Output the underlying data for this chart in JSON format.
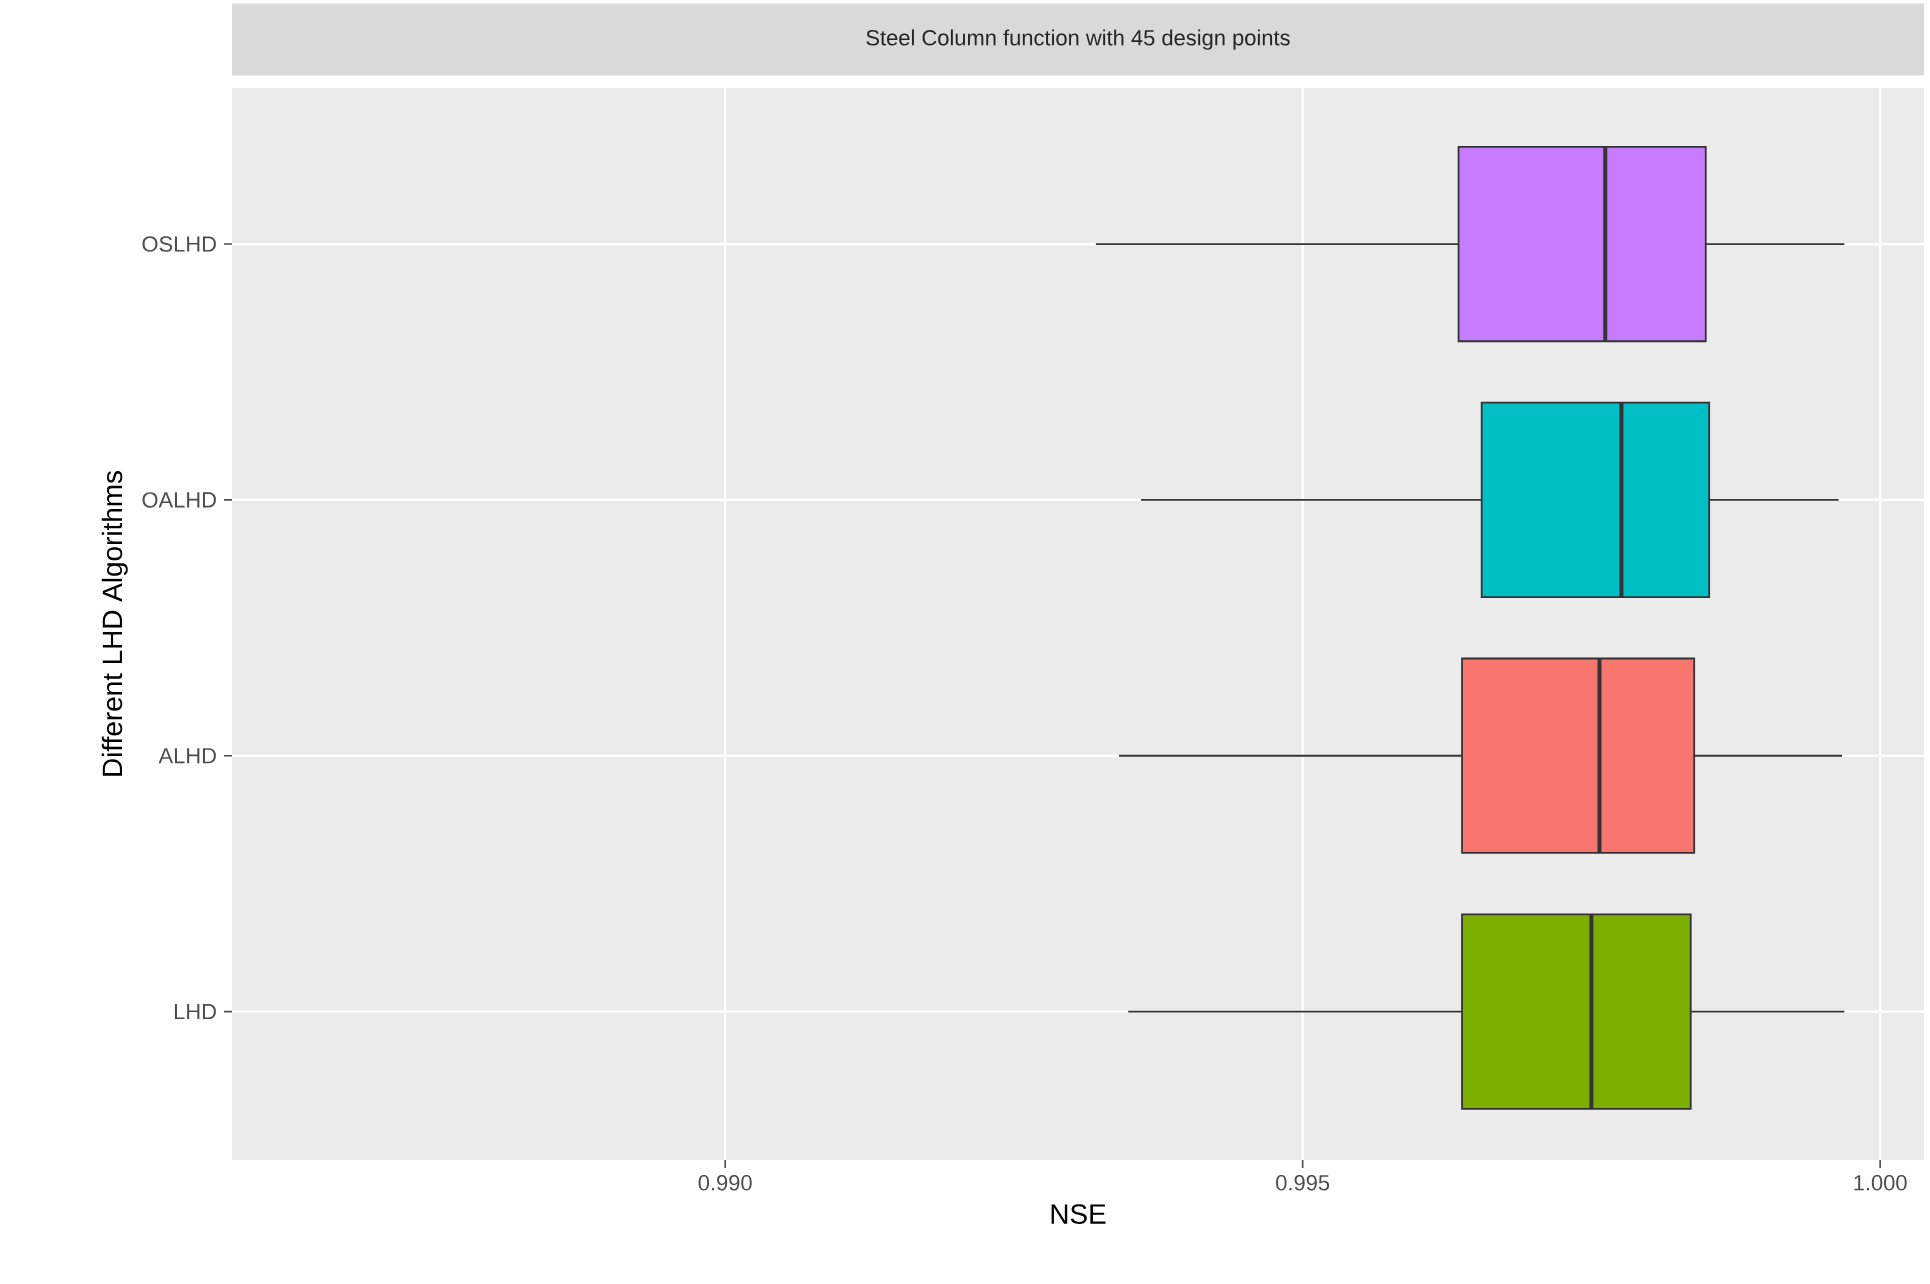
{
  "chart_data": {
    "type": "box",
    "orientation": "horizontal",
    "title": "Steel Column function with 45 design points",
    "xlabel": "NSE",
    "ylabel": "Different LHD Algorithms",
    "categories": [
      "OSLHD",
      "OALHD",
      "ALHD",
      "LHD"
    ],
    "colors": [
      "#c77cff",
      "#00bfc4",
      "#f8766d",
      "#7cae00"
    ],
    "boxes": [
      {
        "low": 0.99321,
        "q1": 0.99635,
        "median": 0.99762,
        "q3": 0.99849,
        "high": 0.99969
      },
      {
        "low": 0.9936,
        "q1": 0.99655,
        "median": 0.99776,
        "q3": 0.99852,
        "high": 0.99964
      },
      {
        "low": 0.99341,
        "q1": 0.99638,
        "median": 0.99757,
        "q3": 0.99839,
        "high": 0.99967
      },
      {
        "low": 0.99349,
        "q1": 0.99638,
        "median": 0.9975,
        "q3": 0.99836,
        "high": 0.99969
      }
    ],
    "xlim": [
      0.98573,
      1.00038
    ],
    "xticks": [
      {
        "value": 0.99,
        "label": "0.990"
      },
      {
        "value": 0.995,
        "label": "0.995"
      },
      {
        "value": 1.0,
        "label": "1.000"
      }
    ],
    "grid": true
  }
}
